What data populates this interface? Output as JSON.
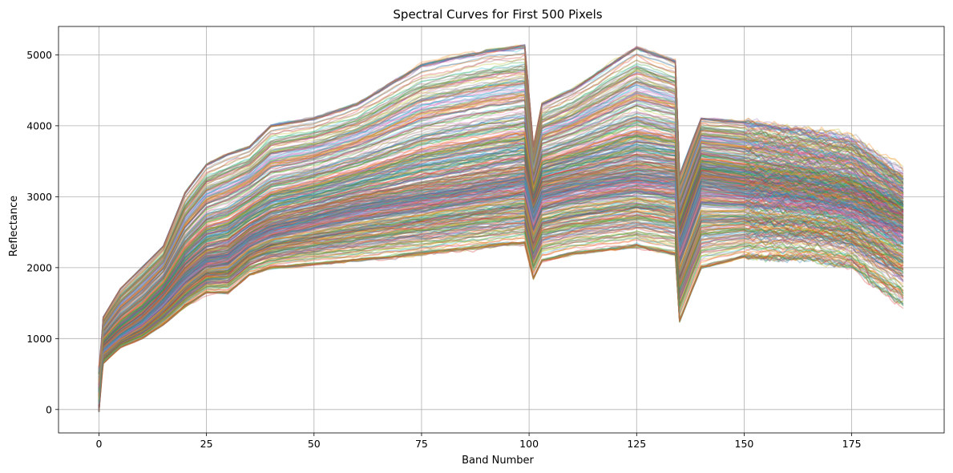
{
  "chart_data": {
    "type": "line",
    "title": "Spectral Curves for First 500 Pixels",
    "xlabel": "Band Number",
    "ylabel": "Reflectance",
    "xlim": [
      -9.4,
      196.5
    ],
    "ylim": [
      -330,
      5400
    ],
    "xticks": [
      0,
      25,
      50,
      75,
      100,
      125,
      150,
      175
    ],
    "yticks": [
      0,
      1000,
      2000,
      3000,
      4000,
      5000
    ],
    "grid": true,
    "legend": "none",
    "band_count": 188,
    "pixel_count": 500,
    "line_alpha": 0.3,
    "series_colors": [
      "#1f77b4",
      "#ff7f0e",
      "#2ca02c",
      "#d62728",
      "#9467bd",
      "#8c564b",
      "#e377c2",
      "#7f7f7f",
      "#bcbd22",
      "#17becf"
    ],
    "envelope": {
      "x": [
        0,
        1,
        5,
        10,
        15,
        20,
        25,
        30,
        35,
        40,
        50,
        60,
        75,
        90,
        99,
        101,
        103,
        110,
        125,
        134,
        135,
        140,
        150,
        165,
        175,
        187
      ],
      "min": [
        -50,
        650,
        880,
        1000,
        1200,
        1450,
        1650,
        1650,
        1900,
        2000,
        2050,
        2100,
        2200,
        2300,
        2350,
        1850,
        2100,
        2200,
        2300,
        2200,
        1250,
        2000,
        2150,
        2150,
        2050,
        1550
      ],
      "max": [
        650,
        1300,
        1700,
        2000,
        2300,
        3050,
        3450,
        3600,
        3700,
        4000,
        4100,
        4300,
        4850,
        5050,
        5120,
        3700,
        4300,
        4500,
        5100,
        4900,
        3300,
        4100,
        4050,
        3900,
        3800,
        3300
      ],
      "median": [
        150,
        850,
        1050,
        1250,
        1550,
        1900,
        2150,
        2200,
        2450,
        2600,
        2750,
        2900,
        3050,
        3200,
        3300,
        2800,
        3100,
        3200,
        3350,
        3300,
        2400,
        3250,
        3150,
        3050,
        2950,
        2650
      ]
    }
  }
}
